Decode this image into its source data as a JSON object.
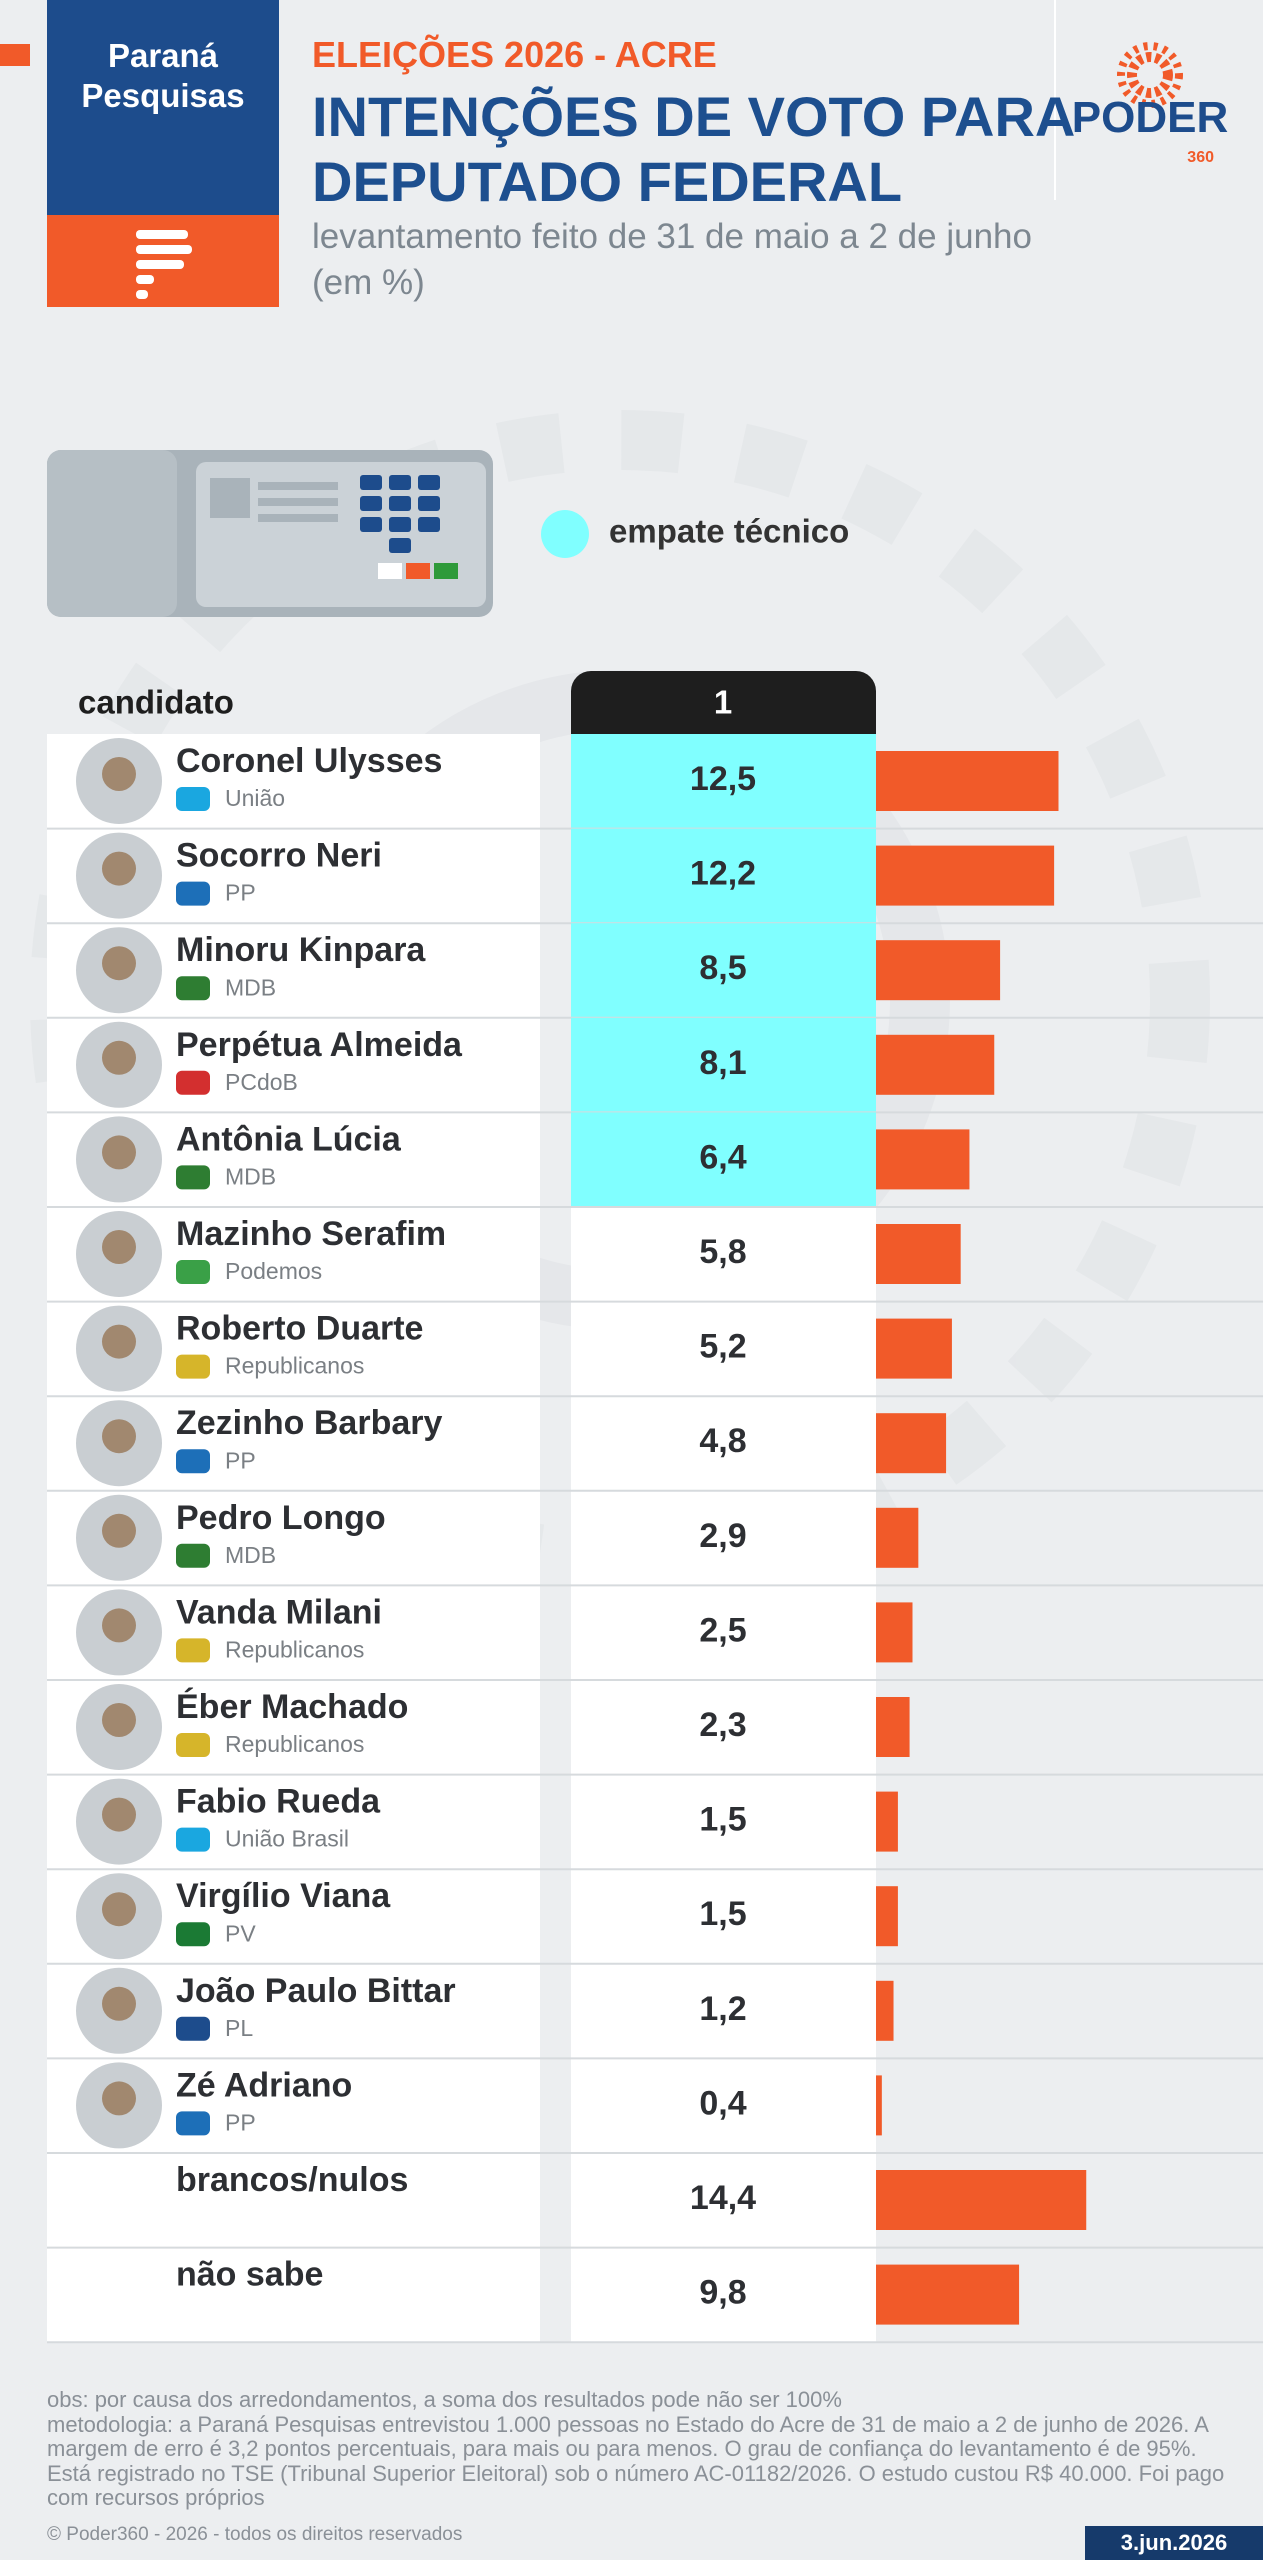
{
  "branding": {
    "pollster": "Paraná Pesquisas",
    "outlet": "PODER",
    "outlet_sub": "360"
  },
  "chart_data": {
    "type": "bar",
    "kicker": "ELEIÇÕES 2026 - ACRE",
    "title": "INTENÇÕES DE VOTO PARA DEPUTADO FEDERAL",
    "subtitle": "levantamento feito de 31 de maio a 2 de junho (em %)",
    "legend": {
      "label": "empate técnico",
      "color": "#80ffff"
    },
    "row_header": "candidato",
    "column_header": "1",
    "categories": [
      "Coronel Ulysses",
      "Socorro Neri",
      "Minoru Kinpara",
      "Perpétua Almeida",
      "Antônia Lúcia",
      "Mazinho Serafim",
      "Roberto Duarte",
      "Zezinho Barbary",
      "Pedro Longo",
      "Vanda Milani",
      "Éber Machado",
      "Fabio Rueda",
      "Virgílio Viana",
      "João Paulo Bittar",
      "Zé Adriano",
      "brancos/nulos",
      "não sabe"
    ],
    "parties": [
      "União",
      "PP",
      "MDB",
      "PCdoB",
      "MDB",
      "Podemos",
      "Republicanos",
      "PP",
      "MDB",
      "Republicanos",
      "Republicanos",
      "União Brasil",
      "PV",
      "PL",
      "PP",
      null,
      null
    ],
    "values": [
      12.5,
      12.2,
      8.5,
      8.1,
      6.4,
      5.8,
      5.2,
      4.8,
      2.9,
      2.5,
      2.3,
      1.5,
      1.5,
      1.2,
      0.4,
      14.4,
      9.8
    ],
    "value_labels": [
      "12,5",
      "12,2",
      "8,5",
      "8,1",
      "6,4",
      "5,8",
      "5,2",
      "4,8",
      "2,9",
      "2,5",
      "2,3",
      "1,5",
      "1,5",
      "1,2",
      "0,4",
      "14,4",
      "9,8"
    ],
    "highlighted": [
      true,
      true,
      true,
      true,
      true,
      false,
      false,
      false,
      false,
      false,
      false,
      false,
      false,
      false,
      false,
      false,
      false
    ],
    "color": "#f15a29",
    "xlim": [
      0,
      20
    ]
  },
  "notes": [
    "obs: por causa dos arredondamentos, a soma dos resultados pode não ser 100%",
    "metodologia: a Paraná Pesquisas entrevistou 1.000 pessoas no Estado do Acre de 31 de maio a 2 de junho de 2026. A margem de erro é 3,2 pontos percentuais, para mais ou para menos. O grau de confiança do levantamento é de 95%. Está registrado no TSE (Tribunal Superior Eleitoral) sob o número AC-01182/2026. O estudo custou R$ 40.000. Foi pago com recursos próprios"
  ],
  "footer": {
    "copyright": "© Poder360 - 2026 - todos os direitos reservados",
    "date": "3.jun.2026"
  }
}
